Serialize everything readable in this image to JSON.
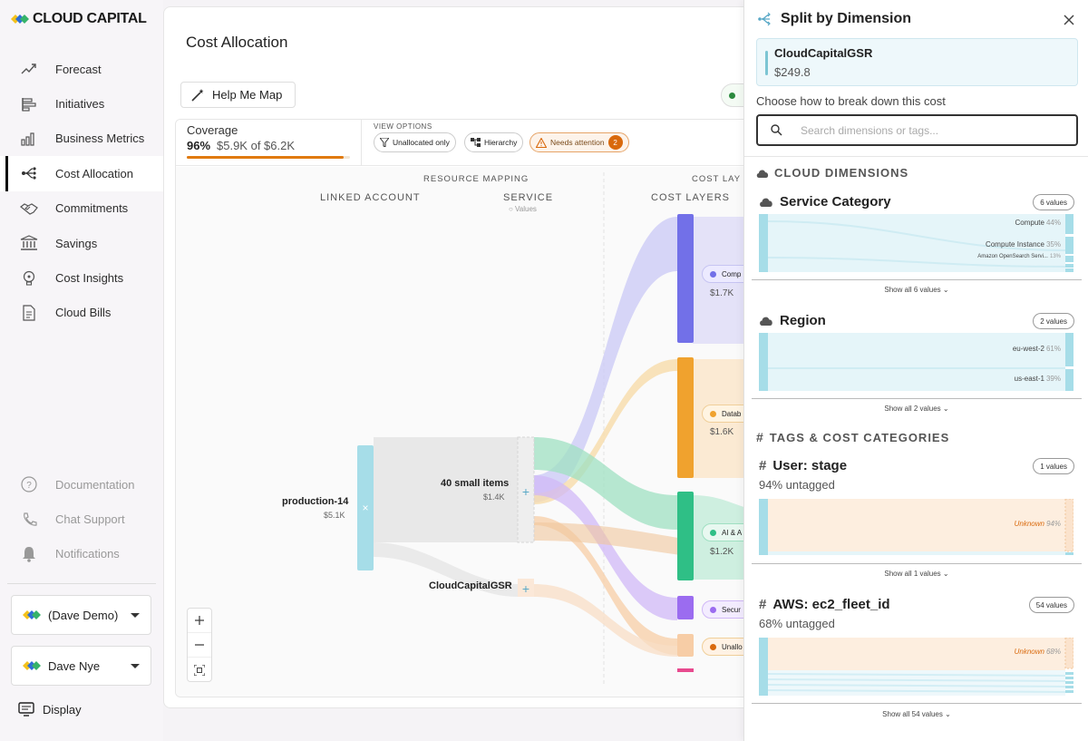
{
  "app": {
    "brand": "CLOUD CAPITAL"
  },
  "sidebar": {
    "items": [
      {
        "label": "Forecast",
        "icon": "trend-up-icon"
      },
      {
        "label": "Initiatives",
        "icon": "initiatives-icon"
      },
      {
        "label": "Business Metrics",
        "icon": "bar-chart-icon"
      },
      {
        "label": "Cost Allocation",
        "icon": "allocation-icon",
        "active": true
      },
      {
        "label": "Commitments",
        "icon": "handshake-icon"
      },
      {
        "label": "Savings",
        "icon": "bank-icon"
      },
      {
        "label": "Cost Insights",
        "icon": "lightbulb-icon"
      },
      {
        "label": "Cloud Bills",
        "icon": "document-icon"
      }
    ],
    "lower": [
      {
        "label": "Documentation",
        "icon": "help-icon"
      },
      {
        "label": "Chat Support",
        "icon": "phone-icon"
      },
      {
        "label": "Notifications",
        "icon": "bell-icon"
      }
    ],
    "org_select": "(Dave Demo)",
    "user_select": "Dave Nye",
    "display_label": "Display"
  },
  "main": {
    "title": "Cost Allocation",
    "help_button": "Help Me Map",
    "coverage": {
      "title": "Coverage",
      "percent": "96%",
      "amount": "$5.9K of $6.2K",
      "fill": 0.96
    },
    "view_options": {
      "title": "VIEW OPTIONS",
      "unallocated": "Unallocated only",
      "hierarchy": "Hierarchy",
      "needs_attention": "Needs attention",
      "attention_count": "2"
    },
    "columns": {
      "resource_mapping": "RESOURCE MAPPING",
      "linked_account": "LINKED ACCOUNT",
      "service": "SERVICE",
      "service_sub": "○ Values",
      "cost_layers_head": "COST LAY",
      "cost_layers": "COST LAYERS"
    },
    "nodes": {
      "account": {
        "name": "production-14",
        "value": "$5.1K"
      },
      "small_items": {
        "name": "40 small items",
        "value": "$1.4K"
      },
      "gsr": {
        "name": "CloudCapitalGSR"
      },
      "layers": [
        {
          "label": "Comp",
          "value": "$1.7K",
          "color": "#7270e8"
        },
        {
          "label": "Datab",
          "value": "$1.6K",
          "color": "#f0a22e"
        },
        {
          "label": "AI & A",
          "value": "$1.2K",
          "color": "#2fbf86"
        },
        {
          "label": "Secur",
          "value": "",
          "color": "#9b6cf0"
        },
        {
          "label": "Unallo",
          "value": "",
          "color": "#f7cda6"
        }
      ]
    }
  },
  "panel": {
    "title": "Split by Dimension",
    "selected": {
      "name": "CloudCapitalGSR",
      "value": "$249.8"
    },
    "prompt": "Choose how to break down this cost",
    "search_placeholder": "Search dimensions or tags...",
    "cloud_header": "CLOUD DIMENSIONS",
    "tags_header": "TAGS & COST CATEGORIES",
    "dimensions": [
      {
        "name": "Service Category",
        "badge": "6 values",
        "rows": [
          {
            "label": "Compute",
            "pct": "44%"
          },
          {
            "label": "Compute Instance",
            "pct": "35%"
          },
          {
            "label": "Amazon OpenSearch Servi...",
            "pct": "13%"
          }
        ],
        "show_all": "Show all 6 values"
      },
      {
        "name": "Region",
        "badge": "2 values",
        "rows": [
          {
            "label": "eu-west-2",
            "pct": "61%"
          },
          {
            "label": "us-east-1",
            "pct": "39%"
          }
        ],
        "show_all": "Show all 2 values"
      }
    ],
    "tags": [
      {
        "name": "User: stage",
        "badge": "1 values",
        "untagged": "94% untagged",
        "unknown": "Unknown",
        "unknown_pct": "94%",
        "show_all": "Show all 1 values"
      },
      {
        "name": "AWS: ec2_fleet_id",
        "badge": "54 values",
        "untagged": "68% untagged",
        "unknown": "Unknown",
        "unknown_pct": "68%",
        "show_all": "Show all 54 values"
      }
    ]
  }
}
